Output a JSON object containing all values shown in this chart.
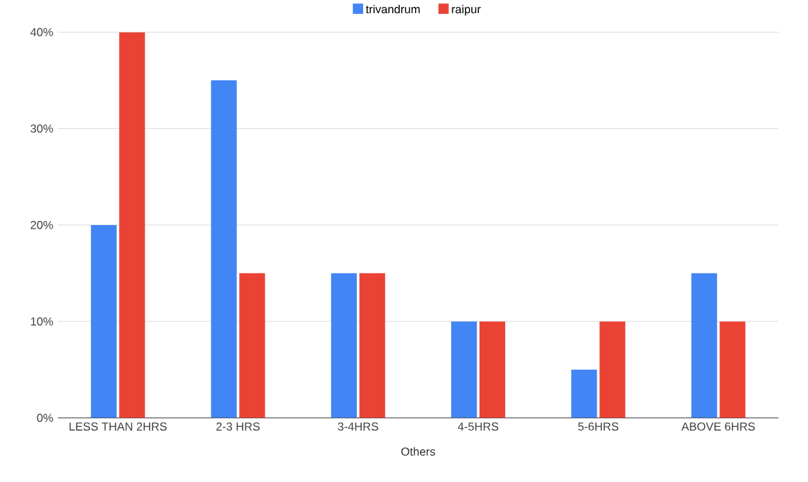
{
  "chart_data": {
    "type": "bar",
    "xlabel": "Others",
    "categories": [
      "LESS THAN 2HRS",
      "2-3 HRS",
      "3-4HRS",
      "4-5HRS",
      "5-6HRS",
      "ABOVE 6HRS"
    ],
    "series": [
      {
        "name": "trivandrum",
        "color": "#4285f4",
        "values": [
          20,
          35,
          15,
          10,
          5,
          15
        ]
      },
      {
        "name": "raipur",
        "color": "#ea4335",
        "values": [
          40,
          15,
          15,
          10,
          10,
          10
        ]
      }
    ],
    "ylim": [
      0,
      40
    ],
    "yticks": [
      {
        "value": 0,
        "label": "0%"
      },
      {
        "value": 10,
        "label": "10%"
      },
      {
        "value": 20,
        "label": "20%"
      },
      {
        "value": 30,
        "label": "30%"
      },
      {
        "value": 40,
        "label": "40%"
      }
    ],
    "grid": "y",
    "legend": "top"
  }
}
